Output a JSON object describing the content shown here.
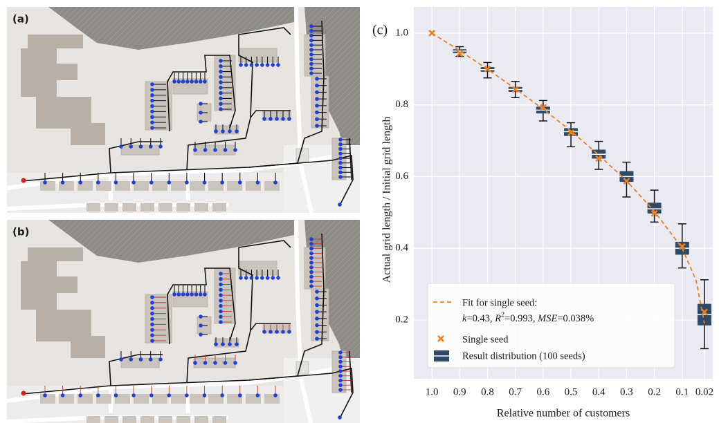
{
  "maps": [
    {
      "label": "(a)"
    },
    {
      "label": "(b)"
    }
  ],
  "chart_data": {
    "type": "box",
    "panel_label": "(c)",
    "x_label": "Relative number of customers",
    "y_label": "Actual grid length / Initial grid length",
    "xlim": [
      1.065,
      -0.01
    ],
    "ylim": [
      0.036,
      1.073
    ],
    "xticks": [
      {
        "value": 1,
        "label": "1.0"
      },
      0.9,
      0.8,
      0.7,
      0.6,
      0.5,
      0.4,
      0.3,
      0.2,
      0.1,
      0.02
    ],
    "yticks": [
      0.2,
      0.4,
      0.6,
      0.8,
      {
        "value": 1,
        "label": "1.0"
      }
    ],
    "grid": true,
    "background": "#eaeaf2",
    "legend": "lower left",
    "series": [
      {
        "name": "Fit for single seed:",
        "type": "line",
        "dashed": true,
        "color": "#f07f1e",
        "label_parts": [
          {
            "text": "k",
            "style": "italic"
          },
          {
            "text": "=0.43, ",
            "style": "normal"
          },
          {
            "text": "R",
            "style": "italic"
          },
          {
            "text": "2",
            "style": "superscript"
          },
          {
            "text": "=0.993, ",
            "style": "normal"
          },
          {
            "text": "MSE",
            "style": "italic"
          },
          {
            "text": "=0.038%",
            "style": "normal"
          }
        ],
        "x": [
          1.0,
          0.9,
          0.8,
          0.7,
          0.6,
          0.5,
          0.4,
          0.3,
          0.2,
          0.1,
          0.05,
          0.02
        ],
        "values": [
          1.0,
          0.951,
          0.899,
          0.845,
          0.788,
          0.727,
          0.66,
          0.588,
          0.503,
          0.4,
          0.31,
          0.19
        ]
      },
      {
        "name": "Single seed",
        "type": "scatter",
        "color": "#f07f1e",
        "x": [
          1.0,
          0.9,
          0.8,
          0.7,
          0.6,
          0.5,
          0.4,
          0.3,
          0.2,
          0.1,
          0.02
        ],
        "values": [
          1.0,
          0.943,
          0.9,
          0.843,
          0.793,
          0.722,
          0.65,
          0.587,
          0.497,
          0.405,
          0.222
        ]
      }
    ],
    "boxes": {
      "name": "Result distribution (100 seeds)",
      "color": "#2e4a66",
      "x": [
        0.9,
        0.8,
        0.7,
        0.6,
        0.5,
        0.4,
        0.3,
        0.2,
        0.1,
        0.02
      ],
      "stats": [
        {
          "low": 0.935,
          "q1": 0.944,
          "median": 0.95,
          "q3": 0.955,
          "high": 0.962
        },
        {
          "low": 0.875,
          "q1": 0.892,
          "median": 0.898,
          "q3": 0.905,
          "high": 0.918
        },
        {
          "low": 0.82,
          "q1": 0.836,
          "median": 0.843,
          "q3": 0.85,
          "high": 0.865
        },
        {
          "low": 0.755,
          "q1": 0.776,
          "median": 0.785,
          "q3": 0.795,
          "high": 0.812
        },
        {
          "low": 0.683,
          "q1": 0.713,
          "median": 0.725,
          "q3": 0.735,
          "high": 0.75
        },
        {
          "low": 0.62,
          "q1": 0.65,
          "median": 0.662,
          "q3": 0.675,
          "high": 0.698
        },
        {
          "low": 0.543,
          "q1": 0.585,
          "median": 0.6,
          "q3": 0.615,
          "high": 0.64
        },
        {
          "low": 0.473,
          "q1": 0.497,
          "median": 0.51,
          "q3": 0.527,
          "high": 0.562
        },
        {
          "low": 0.345,
          "q1": 0.382,
          "median": 0.4,
          "q3": 0.418,
          "high": 0.468
        },
        {
          "low": 0.12,
          "q1": 0.185,
          "median": 0.215,
          "q3": 0.245,
          "high": 0.312
        }
      ]
    }
  }
}
